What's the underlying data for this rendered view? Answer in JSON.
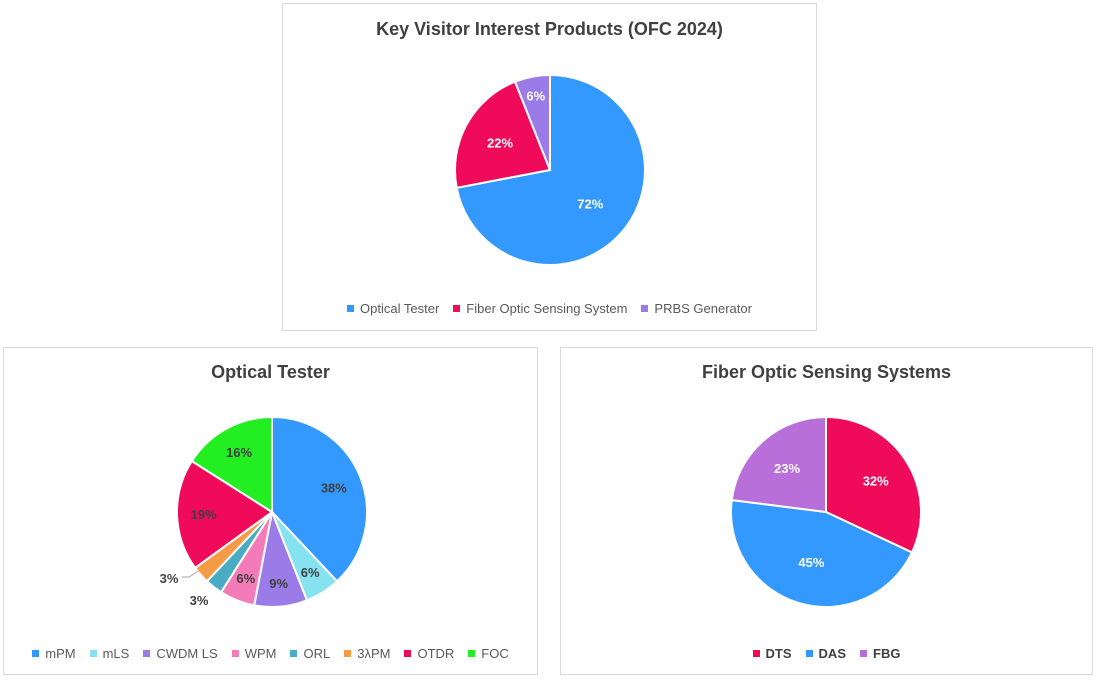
{
  "chart_data": [
    {
      "type": "pie",
      "title": "Key Visitor Interest Products (OFC 2024)",
      "labels": [
        "Optical Tester",
        "Fiber Optic Sensing System",
        "PRBS Generator"
      ],
      "values": [
        72,
        22,
        6
      ],
      "data_labels": [
        "72%",
        "22%",
        "6%"
      ],
      "colors": [
        "#3399FF",
        "#F00A5A",
        "#9B7BE8"
      ],
      "legend_position": "bottom"
    },
    {
      "type": "pie",
      "title": "Optical Tester",
      "labels": [
        "mPM",
        "mLS",
        "CWDM LS",
        "WPM",
        "ORL",
        "3λPM",
        "OTDR",
        "FOC"
      ],
      "values": [
        38,
        6,
        9,
        6,
        3,
        3,
        19,
        16
      ],
      "data_labels": [
        "38%",
        "6%",
        "9%",
        "6%",
        "3%",
        "3%",
        "19%",
        "16%"
      ],
      "colors": [
        "#3399FF",
        "#86E1F0",
        "#9B7BE8",
        "#F27BB8",
        "#4AABC5",
        "#F59B45",
        "#F00A5A",
        "#22EE22"
      ],
      "legend_position": "bottom"
    },
    {
      "type": "pie",
      "title": "Fiber Optic Sensing Systems",
      "labels": [
        "DTS",
        "DAS",
        "FBG"
      ],
      "values": [
        32,
        45,
        23
      ],
      "data_labels": [
        "32%",
        "45%",
        "23%"
      ],
      "colors": [
        "#F00A5A",
        "#3399FF",
        "#B96FDA"
      ],
      "legend_position": "bottom"
    }
  ]
}
